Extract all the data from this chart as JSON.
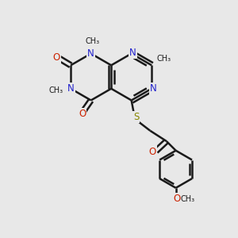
{
  "bg_color": "#e8e8e8",
  "bond_color": "#1a1a1a",
  "N_color": "#2222cc",
  "O_color": "#cc2200",
  "S_color": "#888800",
  "bond_width": 1.8,
  "figsize": [
    3.0,
    3.0
  ],
  "dpi": 100,
  "xlim": [
    0,
    10
  ],
  "ylim": [
    0,
    10
  ]
}
